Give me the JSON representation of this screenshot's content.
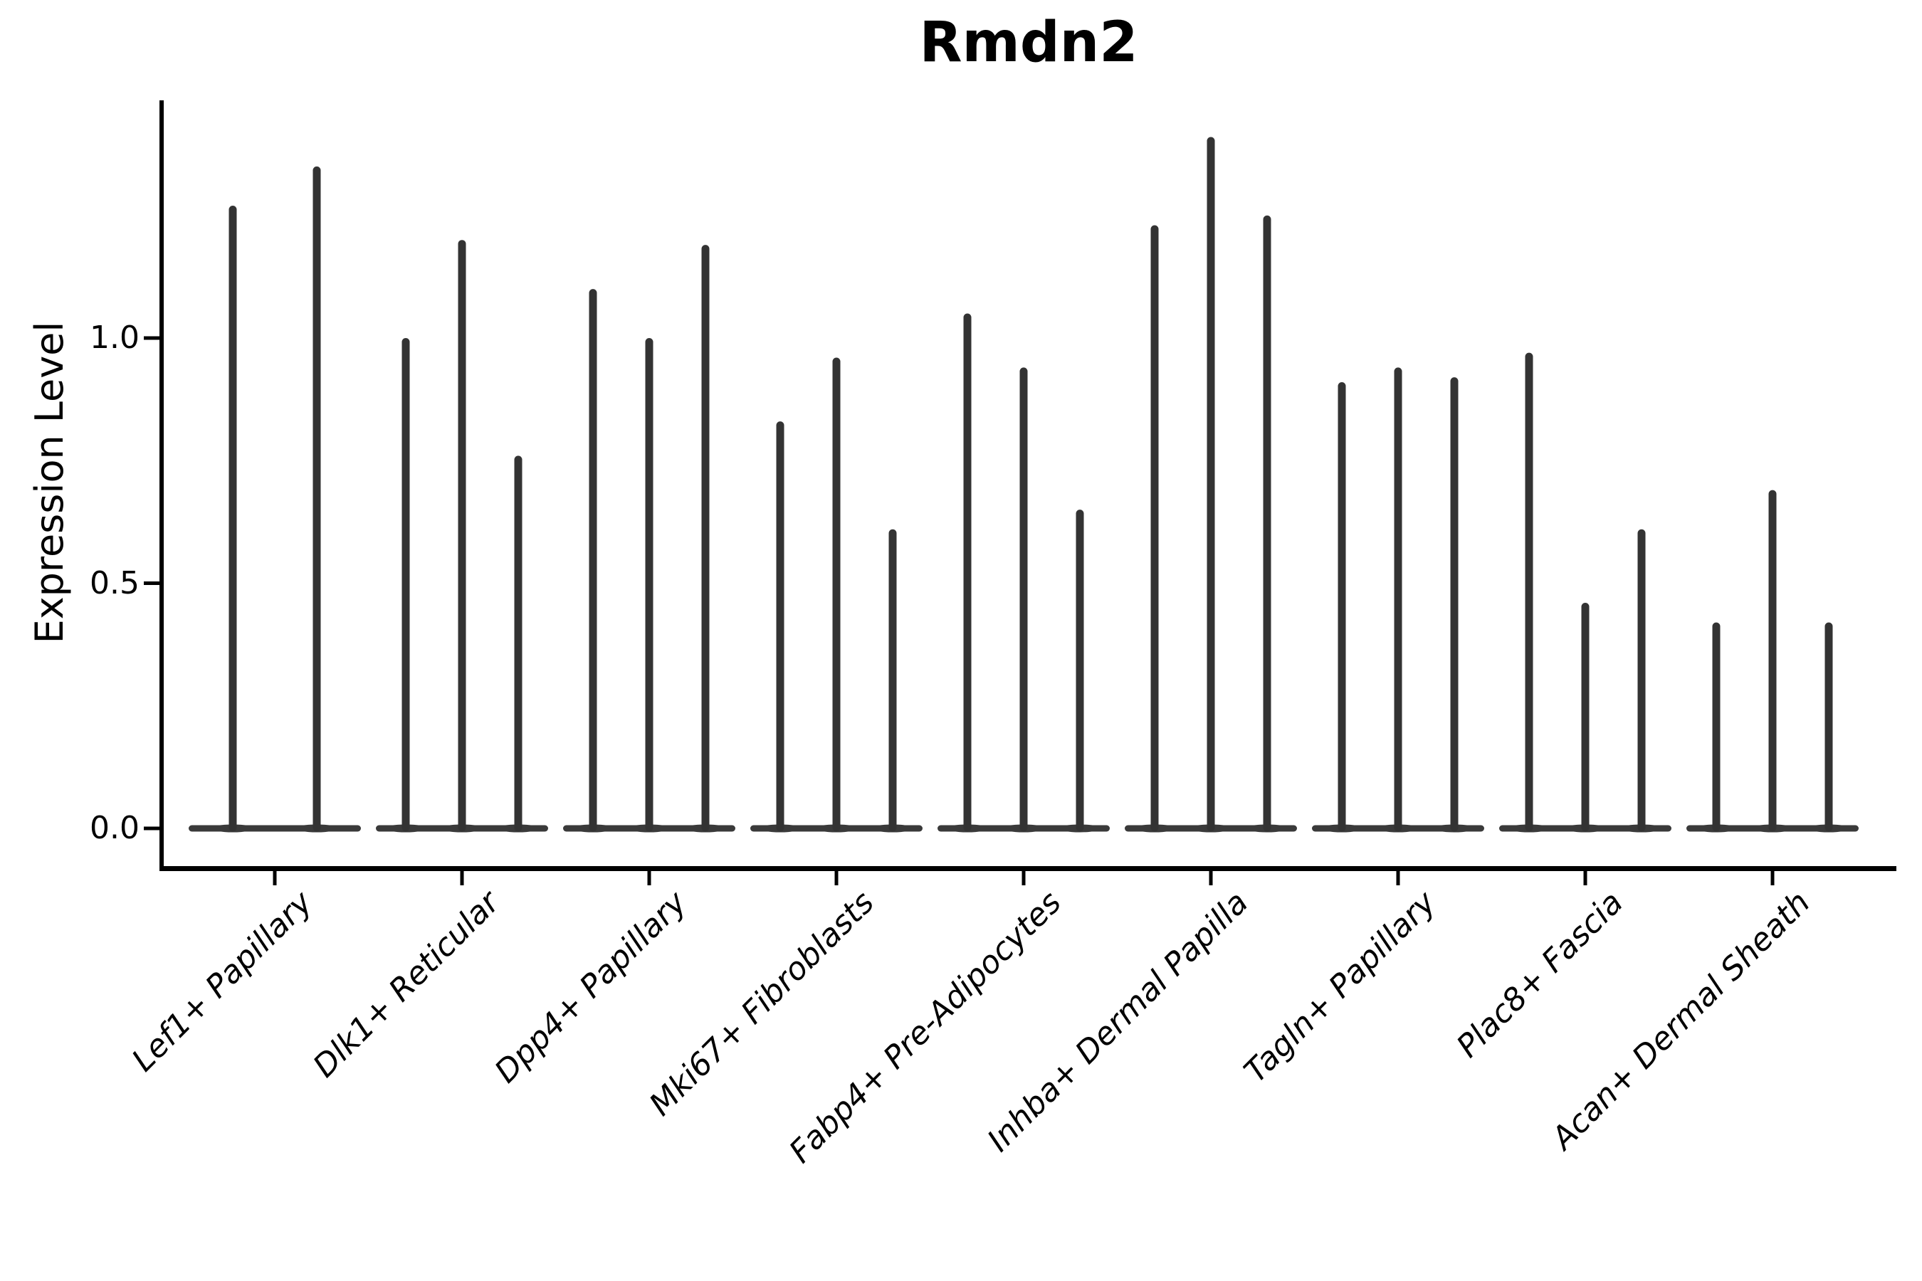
{
  "figure": {
    "background": "#ffffff"
  },
  "y_axis": {
    "label": "Expression Level",
    "tick_labels": [
      "0.0",
      "0.5",
      "1.0"
    ],
    "tick_values": [
      0.0,
      0.5,
      1.0
    ]
  },
  "x_axis": {
    "categories": [
      "Lef1+ Papillary",
      "Dlk1+ Reticular",
      "Dpp4+ Papillary",
      "Mki67+ Fibroblasts",
      "Fabp4+ Pre-Adipocytes",
      "Inhba+ Dermal Papilla",
      "Tagln+ Papillary",
      "Plac8+ Fascia",
      "Acan+ Dermal Sheath"
    ]
  },
  "colors": {
    "violin_fill": "#333333",
    "violin_base": "#3a3a3a",
    "axis": "#000000",
    "text": "#000000"
  },
  "chart_data": {
    "type": "violin",
    "title": "Rmdn2",
    "xlabel": "",
    "ylabel": "Expression Level",
    "ylim": [
      -0.08,
      1.49
    ],
    "yticks": [
      0.0,
      0.5,
      1.0
    ],
    "grid": false,
    "legend_position": "none",
    "style": "very narrow violins rendered as vertical spikes with wide flat bases at expression 0; 2-3 violins per category",
    "categories": [
      "Lef1+ Papillary",
      "Dlk1+ Reticular",
      "Dpp4+ Papillary",
      "Mki67+ Fibroblasts",
      "Fabp4+ Pre-Adipocytes",
      "Inhba+ Dermal Papilla",
      "Tagln+ Papillary",
      "Plac8+ Fascia",
      "Acan+ Dermal Sheath"
    ],
    "groups": [
      {
        "label": "Lef1+ Papillary",
        "violin_peaks": [
          1.27,
          1.35
        ]
      },
      {
        "label": "Dlk1+ Reticular",
        "violin_peaks": [
          1.0,
          1.2,
          0.76
        ]
      },
      {
        "label": "Dpp4+ Papillary",
        "violin_peaks": [
          1.1,
          1.0,
          1.19
        ]
      },
      {
        "label": "Mki67+ Fibroblasts",
        "violin_peaks": [
          0.83,
          0.96,
          0.61
        ]
      },
      {
        "label": "Fabp4+ Pre-Adipocytes",
        "violin_peaks": [
          1.05,
          0.94,
          0.65
        ]
      },
      {
        "label": "Inhba+ Dermal Papilla",
        "violin_peaks": [
          1.23,
          1.41,
          1.25
        ]
      },
      {
        "label": "Tagln+ Papillary",
        "violin_peaks": [
          0.91,
          0.94,
          0.92
        ]
      },
      {
        "label": "Plac8+ Fascia",
        "violin_peaks": [
          0.97,
          0.46,
          0.61
        ]
      },
      {
        "label": "Acan+ Dermal Sheath",
        "violin_peaks": [
          0.42,
          0.69,
          0.42
        ]
      }
    ]
  }
}
